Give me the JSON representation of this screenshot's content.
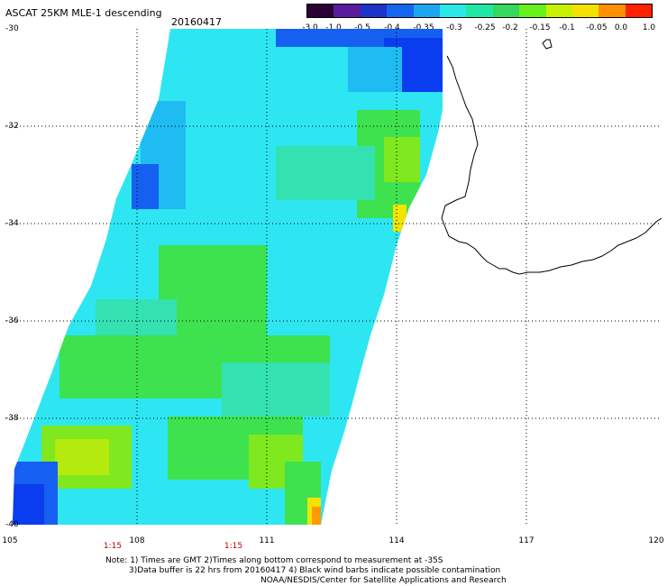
{
  "header": {
    "title": "ASCAT 25KM MLE-1 descending",
    "date": "20160417"
  },
  "colorbar": {
    "labels": [
      "-3.0",
      "-1.0",
      "-0.5",
      "-0.4",
      "-0.35",
      "-0.3",
      "-0.25",
      "-0.2",
      "-0.15",
      "-0.1",
      "-0.05",
      "0.0",
      "1.0"
    ],
    "colors": [
      "#2b0034",
      "#5a1a9e",
      "#1c34c8",
      "#1565f0",
      "#1aa6f0",
      "#2be8e8",
      "#22e6a6",
      "#36d75d",
      "#66f21c",
      "#c8f000",
      "#f3e200",
      "#ff9000",
      "#ff2200"
    ]
  },
  "map": {
    "lat_labels": [
      "-30",
      "-32",
      "-34",
      "-36",
      "-38",
      "-40"
    ],
    "lon_labels": [
      "105",
      "108",
      "111",
      "114",
      "117",
      "120"
    ],
    "time_labels": [
      "1:15",
      "1:15"
    ]
  },
  "notes": {
    "line1": "Note: 1) Times are GMT 2)Times along bottom correspond to measurement at -35S",
    "line2": "3)Data buffer is 22 hrs from 20160417 4) Black wind barbs indicate possible contamination",
    "line3": "NOAA/NESDIS/Center for Satellite Applications and Research"
  },
  "style": {
    "swath_colors": {
      "cyan": "#2ee6f2",
      "light_blue": "#1ebcf2",
      "teal": "#33e2b0",
      "green": "#3ee24e",
      "light_green": "#7fe81e",
      "yellow_green": "#b4ea0e",
      "yellow": "#f0e400",
      "orange": "#ff9a00",
      "deep_blue": "#0a3cf0",
      "mid_blue": "#1560f0"
    },
    "coast_color": "#000000",
    "grid_color": "#000000"
  }
}
